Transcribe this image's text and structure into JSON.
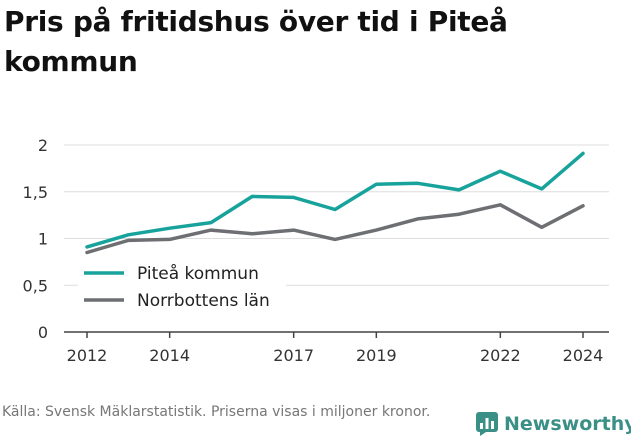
{
  "title": "Pris på fritidshus över tid i Piteå kommun",
  "footer": {
    "source": "Källa: Svensk Mäklarstatistik. Priserna visas i miljoner kronor."
  },
  "brand": {
    "name": "Newsworthy",
    "color": "#3a8f86",
    "icon": "bar-chart-logo-icon"
  },
  "chart_data": {
    "type": "line",
    "title": "Pris på fritidshus över tid i Piteå kommun",
    "xlabel": "",
    "ylabel": "",
    "xlim": [
      2012,
      2024
    ],
    "ylim": [
      0,
      2
    ],
    "xticks": [
      2012,
      2014,
      2017,
      2019,
      2022,
      2024
    ],
    "yticks": [
      {
        "value": 0,
        "label": "0"
      },
      {
        "value": 0.5,
        "label": "0,5"
      },
      {
        "value": 1,
        "label": "1"
      },
      {
        "value": 1.5,
        "label": "1,5"
      },
      {
        "value": 2,
        "label": "2"
      }
    ],
    "grid": true,
    "legend_position": "bottom-left",
    "x": [
      2012,
      2013,
      2014,
      2015,
      2016,
      2017,
      2018,
      2019,
      2020,
      2021,
      2022,
      2023,
      2024
    ],
    "series": [
      {
        "name": "Piteå kommun",
        "color": "#17a39b",
        "values": [
          0.91,
          1.04,
          1.11,
          1.17,
          1.45,
          1.44,
          1.31,
          1.58,
          1.59,
          1.52,
          1.72,
          1.53,
          1.91
        ]
      },
      {
        "name": "Norrbottens län",
        "color": "#6d6f73",
        "values": [
          0.85,
          0.98,
          0.99,
          1.09,
          1.05,
          1.09,
          0.99,
          1.09,
          1.21,
          1.26,
          1.36,
          1.12,
          1.35
        ]
      }
    ]
  }
}
